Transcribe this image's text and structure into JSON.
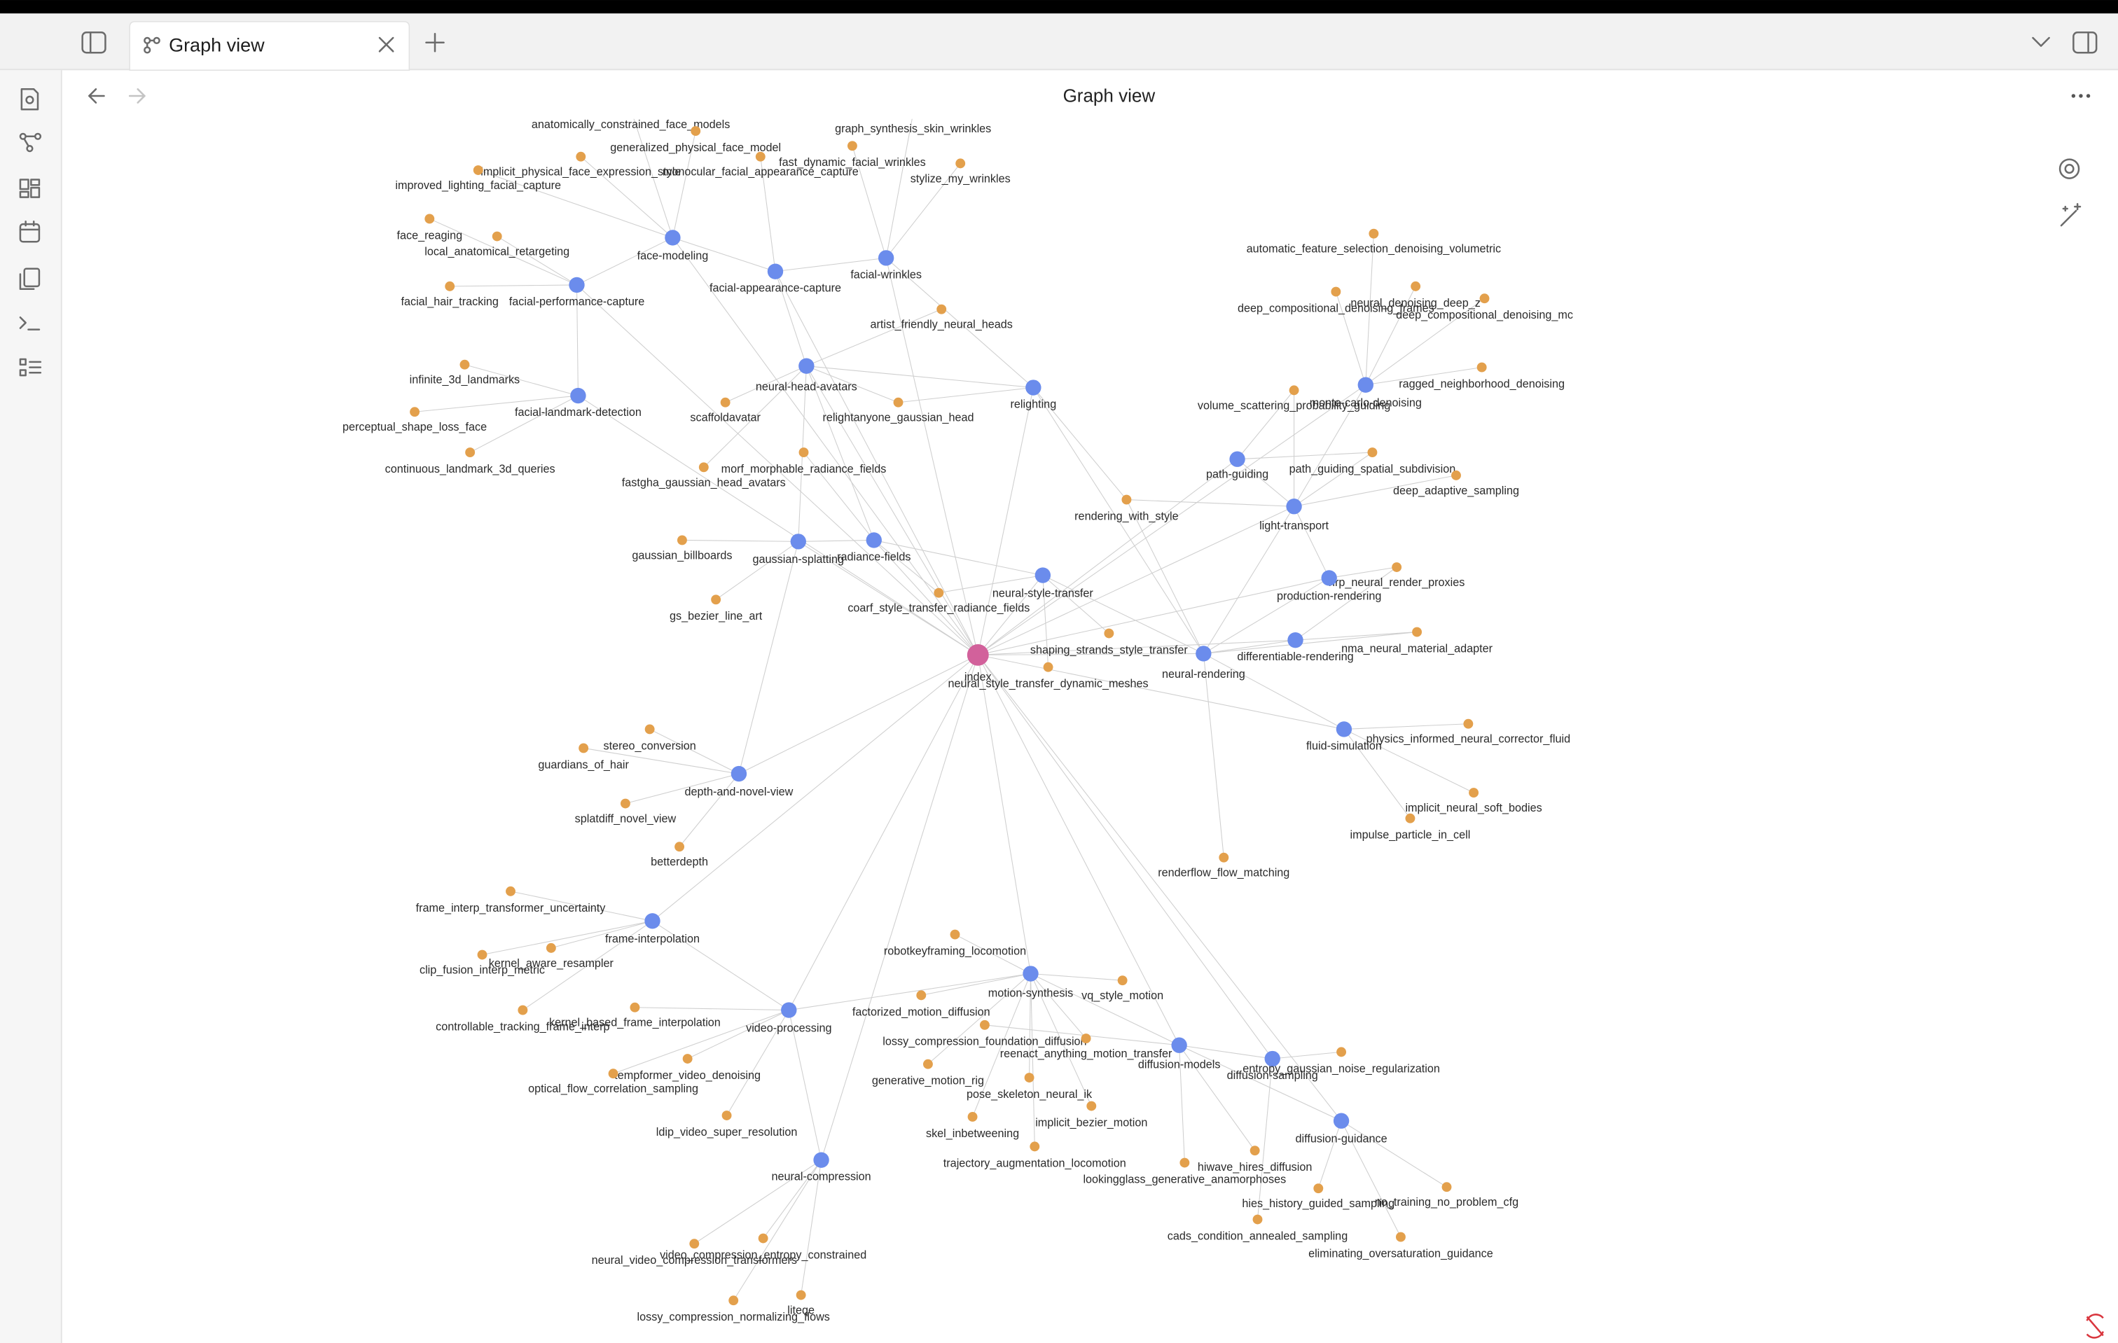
{
  "tab": {
    "title": "Graph view"
  },
  "header": {
    "title": "Graph view"
  },
  "nodes": [
    {
      "label": "anatomically_constrained_face_models"
    },
    {
      "label": "generalized_physical_face_model"
    },
    {
      "label": "implicit_physical_face_expression_style"
    },
    {
      "label": "improved_lighting_facial_capture"
    },
    {
      "label": "monocular_facial_appearance_capture"
    },
    {
      "label": "graph_synthesis_skin_wrinkles"
    },
    {
      "label": "fast_dynamic_facial_wrinkles"
    },
    {
      "label": "stylize_my_wrinkles"
    },
    {
      "label": "face_reaging"
    },
    {
      "label": "local_anatomical_retargeting"
    },
    {
      "label": "face-modeling"
    },
    {
      "label": "facial-appearance-capture"
    },
    {
      "label": "facial-wrinkles"
    },
    {
      "label": "facial_hair_tracking"
    },
    {
      "label": "facial-performance-capture"
    },
    {
      "label": "artist_friendly_neural_heads"
    },
    {
      "label": "automatic_feature_selection_denoising_volumetric"
    },
    {
      "label": "deep_compositional_denoising_frames"
    },
    {
      "label": "neural_denoising_deep_z"
    },
    {
      "label": "deep_compositional_denoising_mc"
    },
    {
      "label": "infinite_3d_landmarks"
    },
    {
      "label": "neural-head-avatars"
    },
    {
      "label": "relighting"
    },
    {
      "label": "monte-carlo-denoising"
    },
    {
      "label": "ragged_neighborhood_denoising"
    },
    {
      "label": "volume_scattering_probability_guiding"
    },
    {
      "label": "facial-landmark-detection"
    },
    {
      "label": "perceptual_shape_loss_face"
    },
    {
      "label": "scaffoldavatar"
    },
    {
      "label": "relightanyone_gaussian_head"
    },
    {
      "label": "continuous_landmark_3d_queries"
    },
    {
      "label": "path_guiding_spatial_subdivision"
    },
    {
      "label": "path-guiding"
    },
    {
      "label": "morf_morphable_radiance_fields"
    },
    {
      "label": "fastgha_gaussian_head_avatars"
    },
    {
      "label": "deep_adaptive_sampling"
    },
    {
      "label": "rendering_with_style"
    },
    {
      "label": "light-transport"
    },
    {
      "label": "gaussian_billboards"
    },
    {
      "label": "gaussian-splatting"
    },
    {
      "label": "radiance-fields"
    },
    {
      "label": "nrp_neural_render_proxies"
    },
    {
      "label": "production-rendering"
    },
    {
      "label": "neural-style-transfer"
    },
    {
      "label": "coarf_style_transfer_radiance_fields"
    },
    {
      "label": "gs_bezier_line_art"
    },
    {
      "label": "shaping_strands_style_transfer"
    },
    {
      "label": "nma_neural_material_adapter"
    },
    {
      "label": "differentiable-rendering"
    },
    {
      "label": "index"
    },
    {
      "label": "neural-rendering"
    },
    {
      "label": "neural_style_transfer_dynamic_meshes"
    },
    {
      "label": "physics_informed_neural_corrector_fluid"
    },
    {
      "label": "fluid-simulation"
    },
    {
      "label": "stereo_conversion"
    },
    {
      "label": "guardians_of_hair"
    },
    {
      "label": "depth-and-novel-view"
    },
    {
      "label": "implicit_neural_soft_bodies"
    },
    {
      "label": "splatdiff_novel_view"
    },
    {
      "label": "impulse_particle_in_cell"
    },
    {
      "label": "betterdepth"
    },
    {
      "label": "renderflow_flow_matching"
    },
    {
      "label": "frame_interp_transformer_uncertainty"
    },
    {
      "label": "frame-interpolation"
    },
    {
      "label": "robotkeyframing_locomotion"
    },
    {
      "label": "kernel_aware_resampler"
    },
    {
      "label": "clip_fusion_interp_metric"
    },
    {
      "label": "motion-synthesis"
    },
    {
      "label": "vq_style_motion"
    },
    {
      "label": "factorized_motion_diffusion"
    },
    {
      "label": "kernel_based_frame_interpolation"
    },
    {
      "label": "controllable_tracking_frame_interp"
    },
    {
      "label": "video-processing"
    },
    {
      "label": "lossy_compression_foundation_diffusion"
    },
    {
      "label": "reenact_anything_motion_transfer"
    },
    {
      "label": "diffusion-models"
    },
    {
      "label": "diffusion-sampling"
    },
    {
      "label": "entropy_gaussian_noise_regularization"
    },
    {
      "label": "tempformer_video_denoising"
    },
    {
      "label": "generative_motion_rig"
    },
    {
      "label": "optical_flow_correlation_sampling"
    },
    {
      "label": "pose_skeleton_neural_ik"
    },
    {
      "label": "implicit_bezier_motion"
    },
    {
      "label": "ldip_video_super_resolution"
    },
    {
      "label": "skel_inbetweening"
    },
    {
      "label": "diffusion-guidance"
    },
    {
      "label": "trajectory_augmentation_locomotion"
    },
    {
      "label": "neural-compression"
    },
    {
      "label": "hiwave_hires_diffusion"
    },
    {
      "label": "lookingglass_generative_anamorphoses"
    },
    {
      "label": "hies_history_guided_sampling"
    },
    {
      "label": "no_training_no_problem_cfg"
    },
    {
      "label": "cads_condition_annealed_sampling"
    },
    {
      "label": "eliminating_oversaturation_guidance"
    },
    {
      "label": "video_compression_entropy_constrained"
    },
    {
      "label": "neural_video_compression_transformers"
    },
    {
      "label": "lossy_compression_normalizing_flows"
    },
    {
      "label": "liteqe"
    }
  ]
}
